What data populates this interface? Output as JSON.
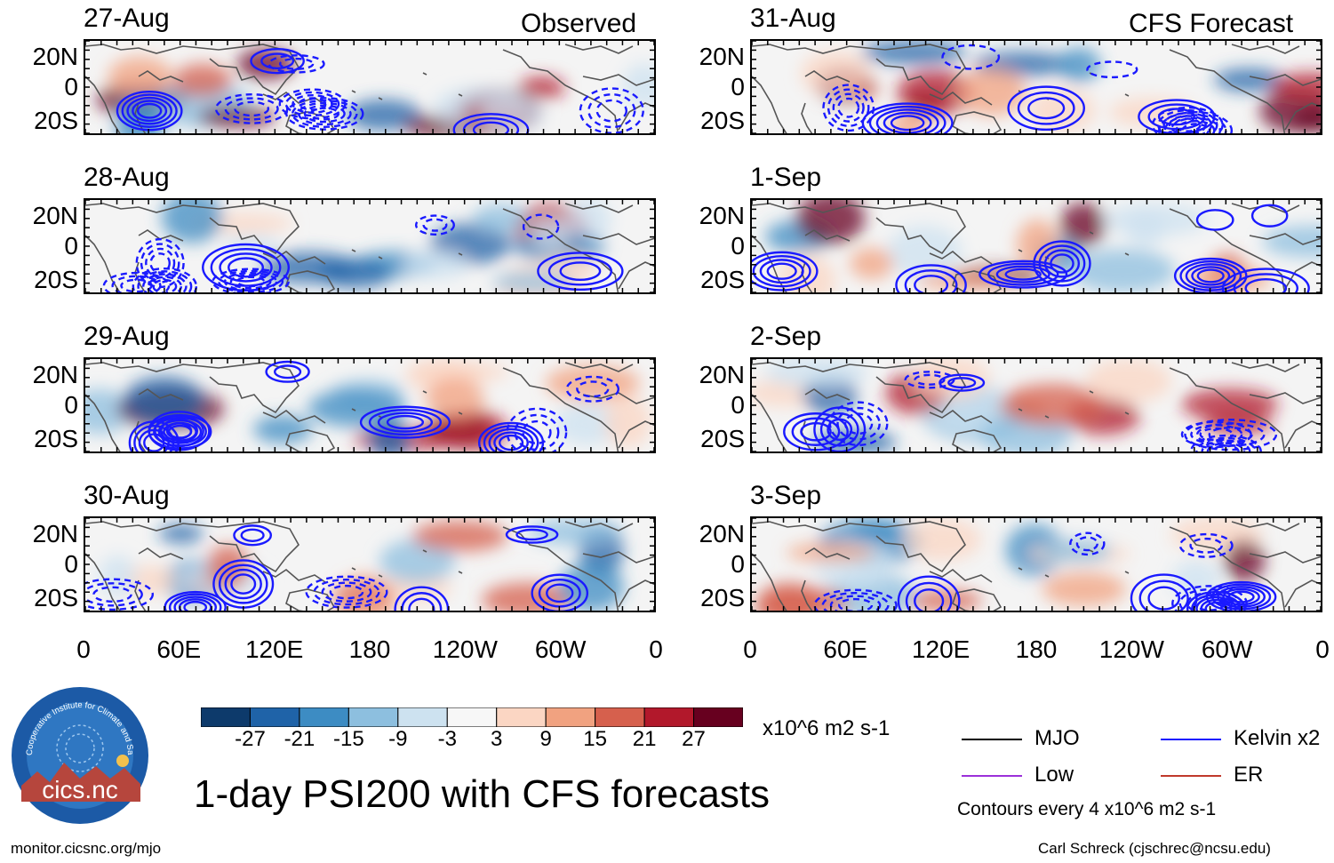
{
  "columns": [
    {
      "title": "Observed",
      "dates": [
        "27-Aug",
        "28-Aug",
        "29-Aug",
        "30-Aug"
      ]
    },
    {
      "title": "CFS Forecast",
      "dates": [
        "31-Aug",
        "1-Sep",
        "2-Sep",
        "3-Sep"
      ]
    }
  ],
  "lat_labels": [
    "20N",
    "0",
    "20S"
  ],
  "lon_labels": [
    "0",
    "60E",
    "120E",
    "180",
    "120W",
    "60W",
    "0"
  ],
  "colorbar": {
    "colors": [
      "#0d3a6b",
      "#1f63a8",
      "#3d8cc3",
      "#8dbfdf",
      "#cde2f0",
      "#f7f7f7",
      "#fbd6c3",
      "#f1a280",
      "#d6604d",
      "#b2182b",
      "#67001f"
    ],
    "tick_labels": [
      "-27",
      "-21",
      "-15",
      "-9",
      "-3",
      "3",
      "9",
      "15",
      "21",
      "27"
    ],
    "units": "x10^6 m2 s-1"
  },
  "legend": {
    "items": [
      {
        "label": "MJO",
        "color": "#000000"
      },
      {
        "label": "Kelvin x2",
        "color": "#1a1aff"
      },
      {
        "label": "Low",
        "color": "#9b30d9"
      },
      {
        "label": "ER",
        "color": "#c0392b"
      }
    ],
    "note": "Contours every 4 x10^6 m2 s-1"
  },
  "logo": {
    "text": "cics.nc",
    "arc_text": "Cooperative Institute for Climate and Satellites"
  },
  "main_title": "1-day PSI200 with CFS forecasts",
  "footer": {
    "left": "monitor.cicsnc.org/mjo",
    "right": "Carl Schreck (cjschrec@ncsu.edu)"
  },
  "colors": {
    "contour": "#1a1aff",
    "coast": "#555555"
  }
}
